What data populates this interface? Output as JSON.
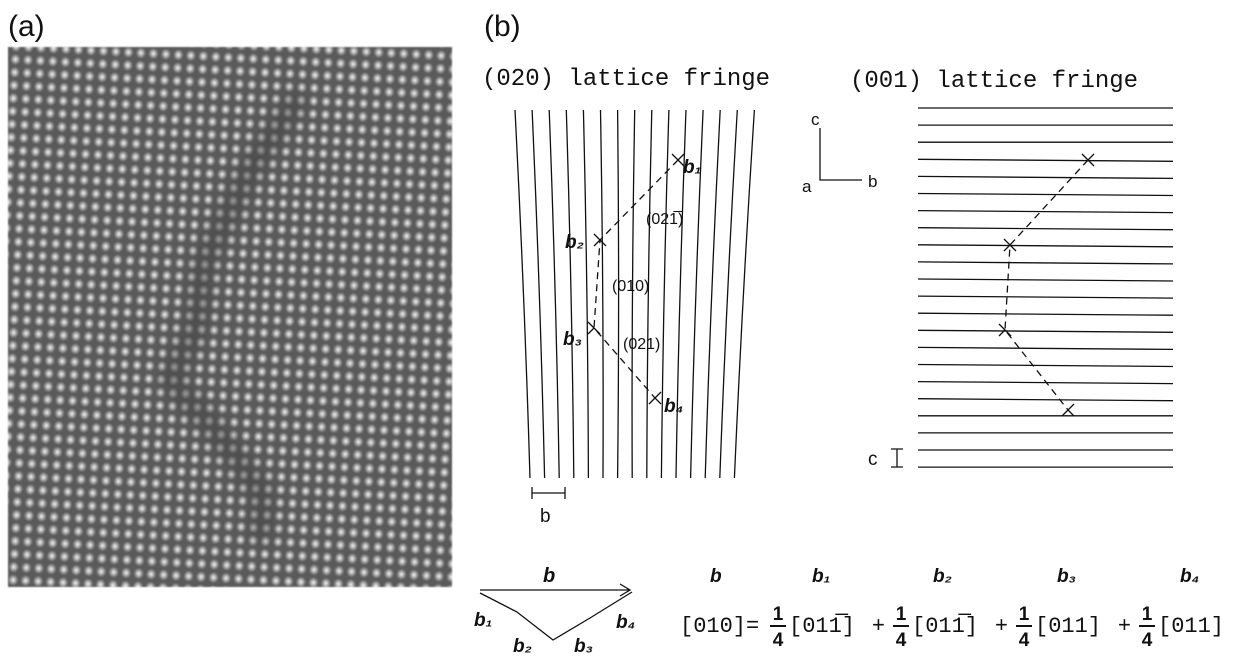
{
  "panel_a": {
    "label": "(a)"
  },
  "panel_b": {
    "label": "(b)",
    "left_title": "(020) lattice fringe",
    "right_title": "(001) lattice fringe",
    "axes": {
      "c": "c",
      "a": "a",
      "b": "b"
    },
    "left_labels": {
      "b1": "b₁",
      "b2": "b₂",
      "b3": "b₃",
      "b4": "b₄",
      "plane1": "(021̅)",
      "plane2": "(010)",
      "plane3": "(021)"
    },
    "scale_b": "b",
    "scale_c": "c",
    "vector_diagram": {
      "b": "b",
      "b1": "b₁",
      "b2": "b₂",
      "b3": "b₃",
      "b4": "b₄"
    },
    "equation_labels": [
      "b",
      "b₁",
      "b₂",
      "b₃",
      "b₄"
    ],
    "equation": {
      "lhs": "[010]=",
      "terms": [
        {
          "num": "1",
          "den": "4",
          "vec": "[011̅]"
        },
        {
          "num": "1",
          "den": "4",
          "vec": "[011̅]"
        },
        {
          "num": "1",
          "den": "4",
          "vec": "[011]"
        },
        {
          "num": "1",
          "den": "4",
          "vec": "[011]"
        }
      ],
      "operator": "+"
    }
  }
}
